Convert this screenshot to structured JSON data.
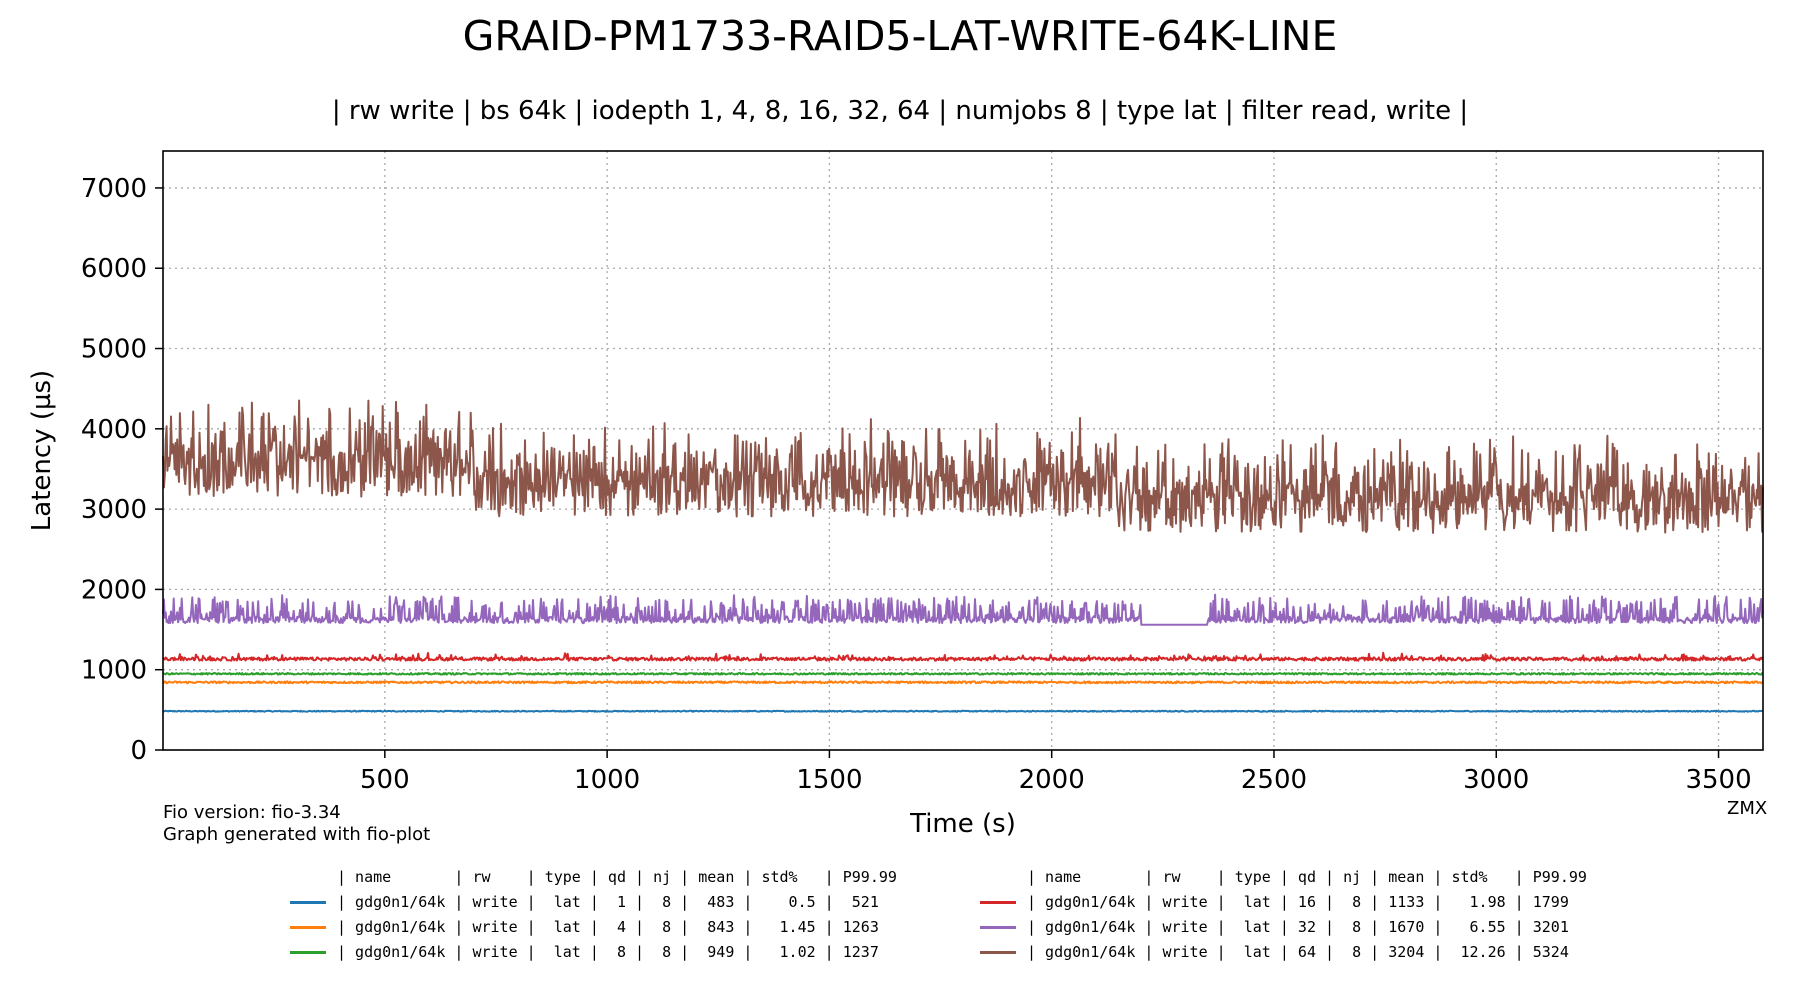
{
  "chart_data": {
    "type": "line",
    "title": "GRAID-PM1733-RAID5-LAT-WRITE-64K-LINE",
    "subtitle": "| rw write | bs 64k | iodepth 1, 4, 8, 16, 32, 64 | numjobs 8 | type lat | filter read, write |",
    "xlabel": "Time (s)",
    "ylabel": "Latency (µs)",
    "xlim": [
      1,
      3600
    ],
    "ylim": [
      0,
      7460
    ],
    "xticks": [
      500,
      1000,
      1500,
      2000,
      2500,
      3000,
      3500
    ],
    "yticks": [
      0,
      1000,
      2000,
      3000,
      4000,
      5000,
      6000,
      7000
    ],
    "grid": true,
    "grid_style": "dotted",
    "legend_placement": "bottom",
    "series": [
      {
        "color": "#1f77b4",
        "qd": 1,
        "base": 483,
        "spread": 6,
        "spikes": 0,
        "spike_amp": 0
      },
      {
        "color": "#ff7f0e",
        "qd": 4,
        "base": 843,
        "spread": 12,
        "spikes": 0,
        "spike_amp": 0
      },
      {
        "color": "#2ca02c",
        "qd": 8,
        "base": 949,
        "spread": 10,
        "spikes": 0,
        "spike_amp": 0
      },
      {
        "color": "#d62728",
        "qd": 16,
        "base": 1133,
        "spread": 20,
        "spikes": 0.08,
        "spike_amp": 60
      },
      {
        "color": "#9467bd",
        "qd": 32,
        "base": 1620,
        "spread": 40,
        "spikes": 0.35,
        "spike_amp": 280
      },
      {
        "color": "#8c564b",
        "qd": 64,
        "base": 3204,
        "spread": 300,
        "spikes": 0.5,
        "spike_amp": 650
      }
    ]
  },
  "footer": {
    "fio_version": "Fio version: fio-3.34",
    "generator": "Graph generated with fio-plot",
    "watermark": "ZMX"
  },
  "legend": {
    "header": "| name       | rw    | type | qd | nj | mean | std%   | P99.99",
    "rows": [
      {
        "text": "| gdg0n1/64k | write |  lat |  1 |  8 |  483 |    0.5 |  521",
        "color": "#1f77b4"
      },
      {
        "text": "| gdg0n1/64k | write |  lat |  4 |  8 |  843 |   1.45 | 1263",
        "color": "#ff7f0e"
      },
      {
        "text": "| gdg0n1/64k | write |  lat |  8 |  8 |  949 |   1.02 | 1237",
        "color": "#2ca02c"
      },
      {
        "text": "| gdg0n1/64k | write |  lat | 16 |  8 | 1133 |   1.98 | 1799",
        "color": "#d62728"
      },
      {
        "text": "| gdg0n1/64k | write |  lat | 32 |  8 | 1670 |   6.55 | 3201",
        "color": "#9467bd"
      },
      {
        "text": "| gdg0n1/64k | write |  lat | 64 |  8 | 3204 |  12.26 | 5324",
        "color": "#8c564b"
      }
    ]
  }
}
